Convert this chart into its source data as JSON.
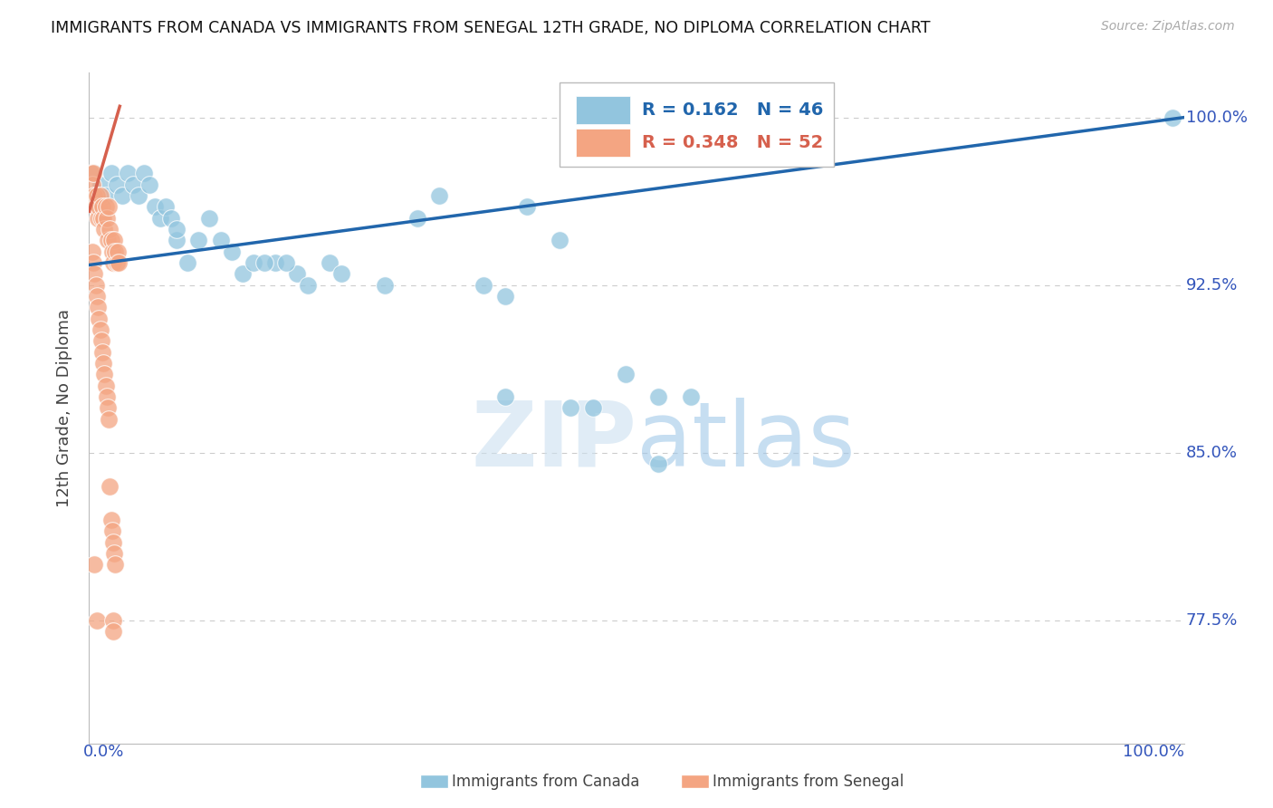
{
  "title": "IMMIGRANTS FROM CANADA VS IMMIGRANTS FROM SENEGAL 12TH GRADE, NO DIPLOMA CORRELATION CHART",
  "source": "Source: ZipAtlas.com",
  "ylabel": "12th Grade, No Diploma",
  "watermark": "ZIPatlas",
  "legend_blue_r": "R = 0.162",
  "legend_blue_n": "N = 46",
  "legend_pink_r": "R = 0.348",
  "legend_pink_n": "N = 52",
  "legend_blue_label": "Immigrants from Canada",
  "legend_pink_label": "Immigrants from Senegal",
  "xlim": [
    0.0,
    1.0
  ],
  "ylim": [
    0.72,
    1.02
  ],
  "yticks": [
    0.775,
    0.85,
    0.925,
    1.0
  ],
  "ytick_labels": [
    "77.5%",
    "85.0%",
    "92.5%",
    "100.0%"
  ],
  "blue_color": "#92c5de",
  "pink_color": "#f4a582",
  "blue_line_color": "#2166ac",
  "pink_line_color": "#d6604d",
  "grid_color": "#cccccc",
  "title_color": "#111111",
  "axis_label_color": "#444444",
  "tick_color": "#3355bb",
  "background_color": "#ffffff",
  "canada_x": [
    0.005,
    0.01,
    0.015,
    0.02,
    0.025,
    0.03,
    0.035,
    0.04,
    0.045,
    0.05,
    0.055,
    0.06,
    0.065,
    0.07,
    0.075,
    0.08,
    0.09,
    0.1,
    0.11,
    0.13,
    0.14,
    0.15,
    0.17,
    0.19,
    0.22,
    0.27,
    0.08,
    0.12,
    0.16,
    0.18,
    0.2,
    0.23,
    0.3,
    0.32,
    0.36,
    0.38,
    0.4,
    0.43,
    0.46,
    0.49,
    0.52,
    0.55,
    0.44,
    0.38,
    0.52,
    0.99
  ],
  "canada_y": [
    0.975,
    0.97,
    0.965,
    0.975,
    0.97,
    0.965,
    0.975,
    0.97,
    0.965,
    0.975,
    0.97,
    0.96,
    0.955,
    0.96,
    0.955,
    0.945,
    0.935,
    0.945,
    0.955,
    0.94,
    0.93,
    0.935,
    0.935,
    0.93,
    0.935,
    0.925,
    0.95,
    0.945,
    0.935,
    0.935,
    0.925,
    0.93,
    0.955,
    0.965,
    0.925,
    0.92,
    0.96,
    0.945,
    0.87,
    0.885,
    0.875,
    0.875,
    0.87,
    0.875,
    0.845,
    1.0
  ],
  "senegal_x": [
    0.002,
    0.003,
    0.004,
    0.005,
    0.006,
    0.007,
    0.008,
    0.009,
    0.01,
    0.011,
    0.012,
    0.013,
    0.014,
    0.015,
    0.016,
    0.017,
    0.018,
    0.019,
    0.02,
    0.021,
    0.022,
    0.023,
    0.024,
    0.025,
    0.026,
    0.027,
    0.003,
    0.004,
    0.005,
    0.006,
    0.007,
    0.008,
    0.009,
    0.01,
    0.011,
    0.012,
    0.013,
    0.014,
    0.015,
    0.016,
    0.017,
    0.018,
    0.019,
    0.02,
    0.021,
    0.022,
    0.023,
    0.024,
    0.005,
    0.007,
    0.022,
    0.022
  ],
  "senegal_y": [
    0.975,
    0.97,
    0.975,
    0.965,
    0.96,
    0.965,
    0.955,
    0.96,
    0.965,
    0.955,
    0.96,
    0.955,
    0.95,
    0.96,
    0.955,
    0.945,
    0.96,
    0.95,
    0.945,
    0.94,
    0.935,
    0.945,
    0.94,
    0.935,
    0.94,
    0.935,
    0.94,
    0.935,
    0.93,
    0.925,
    0.92,
    0.915,
    0.91,
    0.905,
    0.9,
    0.895,
    0.89,
    0.885,
    0.88,
    0.875,
    0.87,
    0.865,
    0.835,
    0.82,
    0.815,
    0.81,
    0.805,
    0.8,
    0.8,
    0.775,
    0.775,
    0.77
  ],
  "blue_trendline_x": [
    0.0,
    1.0
  ],
  "blue_trendline_y": [
    0.934,
    1.0
  ],
  "pink_trendline_x": [
    0.0,
    0.028
  ],
  "pink_trendline_y": [
    0.958,
    1.005
  ]
}
